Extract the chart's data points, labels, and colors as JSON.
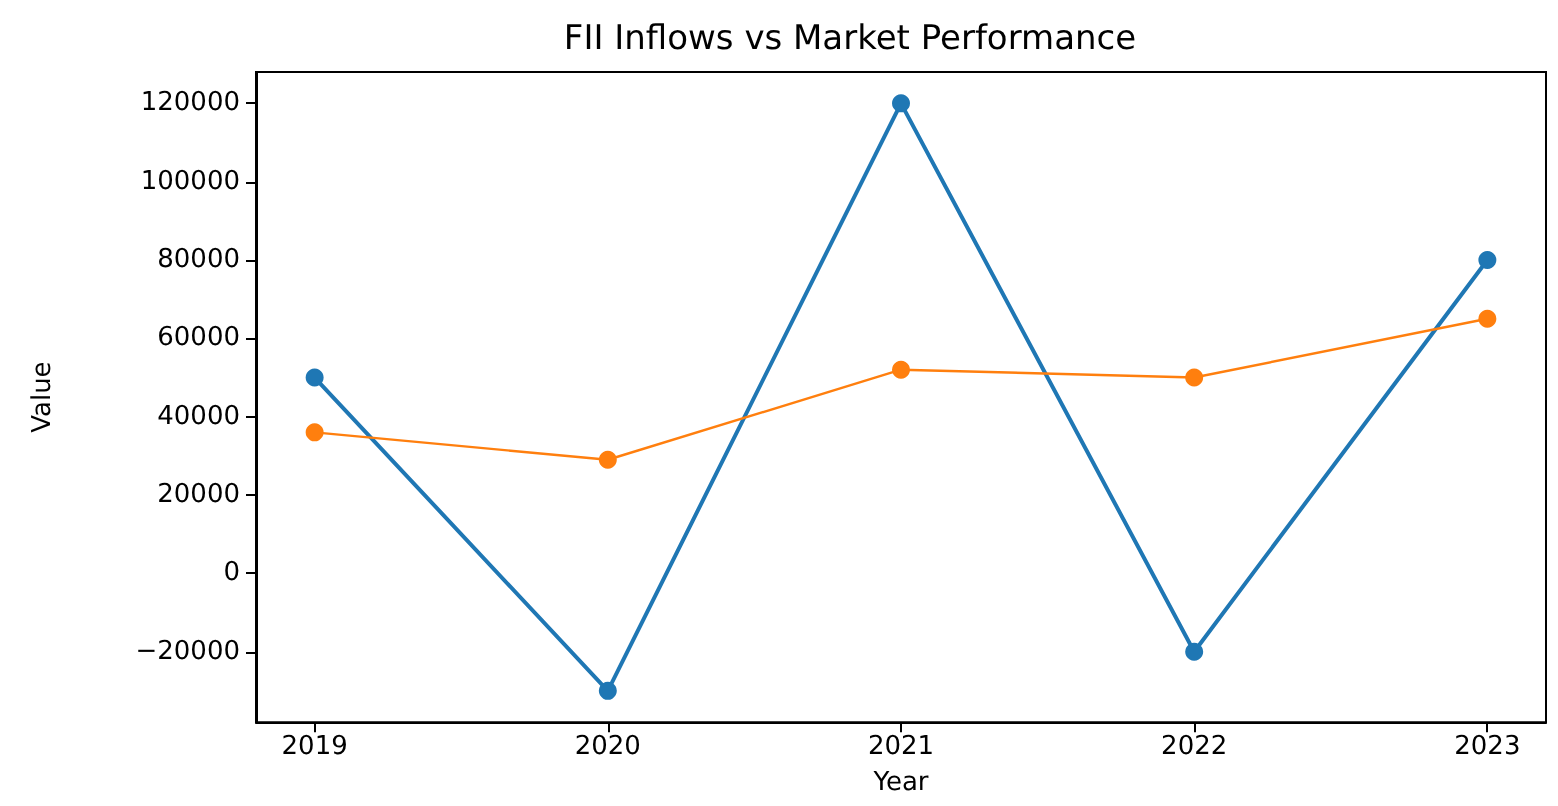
{
  "chart_data": {
    "type": "line",
    "title": "FII Inflows vs Market Performance",
    "xlabel": "Year",
    "ylabel": "Value",
    "x": [
      2019,
      2020,
      2021,
      2022,
      2023
    ],
    "series": [
      {
        "color": "#1f77b4",
        "values": [
          50000,
          -30000,
          120000,
          -20000,
          80000
        ]
      },
      {
        "color": "#ff7f0e",
        "values": [
          36000,
          29000,
          52000,
          50000,
          65000
        ]
      }
    ],
    "xlim": [
      2018.8,
      2023.2
    ],
    "xticks": [
      2019,
      2020,
      2021,
      2022,
      2023
    ],
    "ylim": [
      -38000,
      128000
    ],
    "yticks": [
      -20000,
      0,
      20000,
      40000,
      60000,
      80000,
      100000,
      120000
    ],
    "marker": "circle",
    "line_style": "solid"
  }
}
